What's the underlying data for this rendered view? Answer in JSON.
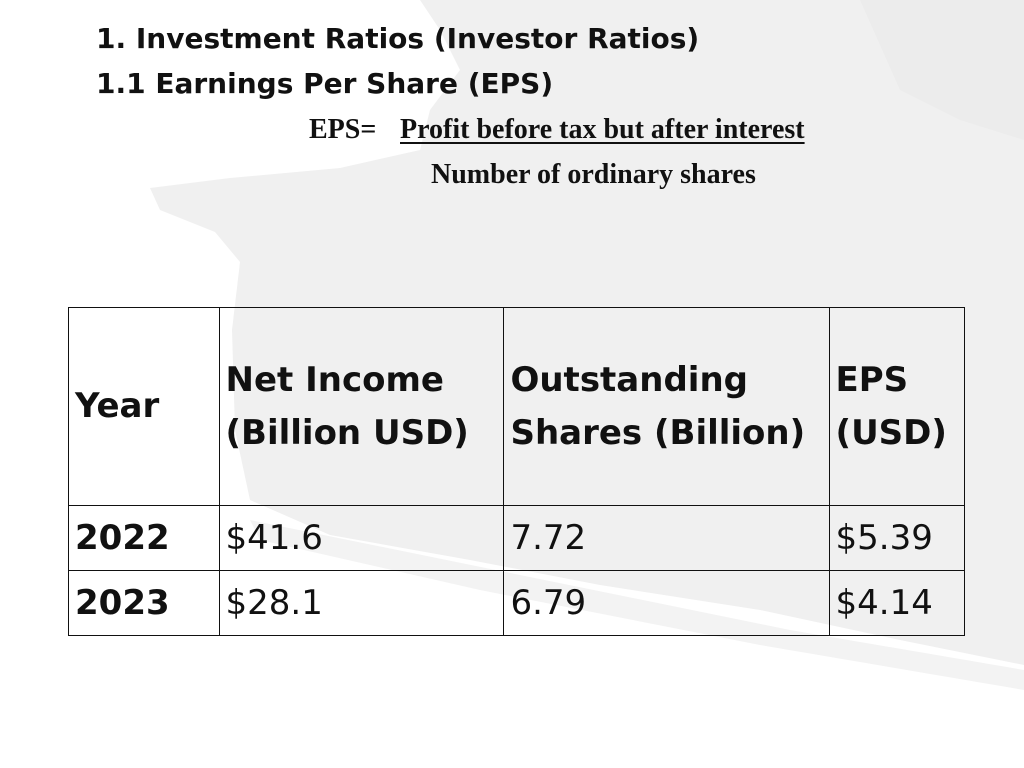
{
  "headings": {
    "title": "1. Investment Ratios (Investor Ratios)",
    "subtitle": "1.1 Earnings Per Share (EPS)"
  },
  "formula": {
    "lhs": "EPS=",
    "numerator": "Profit before tax but after interest",
    "denominator": "Number of ordinary shares"
  },
  "table": {
    "headers": {
      "year": "Year",
      "net_income": "Net Income (Billion USD)",
      "shares": "Outstanding Shares (Billion)",
      "eps": "EPS (USD)"
    },
    "rows": [
      {
        "year": "2022",
        "net_income": "$41.6",
        "shares": "7.72",
        "eps": "$5.39"
      },
      {
        "year": "2023",
        "net_income": "$28.1",
        "shares": "6.79",
        "eps": "$4.14"
      }
    ]
  },
  "colors": {
    "background": "#ffffff",
    "swoosh": "#f0f0f0",
    "text": "#111111",
    "border": "#111111"
  }
}
